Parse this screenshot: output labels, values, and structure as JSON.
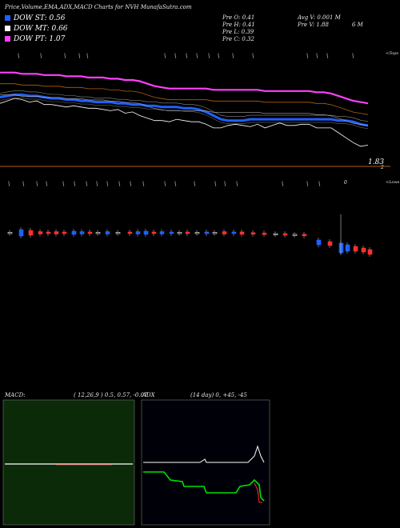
{
  "header": {
    "title": "Price,Volume,EMA,ADX,MACD Charts for NVH MunafaSutra.com"
  },
  "legend": [
    {
      "label": "DOW ST: 0.56",
      "color": "#2060ff"
    },
    {
      "label": "DOW MT: 0.66",
      "color": "#ffffff"
    },
    {
      "label": "DOW PT: 1.07",
      "color": "#ff40ff"
    }
  ],
  "stats": {
    "open": "Pre  O: 0.41",
    "high": "Pre  H: 0.41",
    "low": "Pre  L: 0.39",
    "close": "Pre  C: 0.32",
    "avgvol": "Avg V: 0.001 M",
    "vol": "Pre  V: 1.88",
    "vol_unit": "6  M"
  },
  "price_panel": {
    "tag": "<Tops",
    "last_price": "1.83",
    "corner": "2"
  },
  "volume_panel": {
    "tag": "<Lows",
    "zero": "0"
  },
  "macd": {
    "label": "MACD:",
    "params": "( 12,26,9 ) 0.5,  0.57,  -0.07",
    "bg": "#0a2a08"
  },
  "adx": {
    "label": "ADX",
    "params": "(14  day) 0,  +45,  -45",
    "bg": "#000008"
  },
  "chart_data": {
    "type": "line",
    "series": [
      {
        "values": [
          0.75,
          0.76,
          0.77,
          0.77,
          0.76,
          0.76,
          0.75,
          0.74,
          0.74,
          0.73,
          0.73,
          0.72,
          0.72,
          0.71,
          0.71,
          0.71,
          0.7,
          0.7,
          0.69,
          0.69,
          0.68,
          0.68,
          0.67,
          0.67,
          0.67,
          0.66,
          0.66,
          0.65,
          0.63,
          0.6,
          0.57,
          0.56,
          0.56,
          0.56,
          0.57,
          0.57,
          0.57,
          0.57,
          0.57,
          0.57,
          0.57,
          0.57,
          0.57,
          0.57,
          0.57,
          0.57,
          0.56,
          0.56,
          0.55,
          0.53,
          0.52
        ]
      },
      {
        "values": [
          0.7,
          0.72,
          0.74,
          0.73,
          0.71,
          0.72,
          0.69,
          0.69,
          0.68,
          0.67,
          0.68,
          0.67,
          0.66,
          0.66,
          0.65,
          0.64,
          0.65,
          0.62,
          0.63,
          0.6,
          0.58,
          0.56,
          0.56,
          0.55,
          0.57,
          0.56,
          0.55,
          0.55,
          0.53,
          0.5,
          0.5,
          0.52,
          0.53,
          0.52,
          0.51,
          0.53,
          0.5,
          0.52,
          0.54,
          0.52,
          0.52,
          0.53,
          0.53,
          0.5,
          0.5,
          0.5,
          0.46,
          0.42,
          0.38,
          0.35,
          0.36
        ]
      },
      {
        "values": [
          0.95,
          0.95,
          0.95,
          0.94,
          0.94,
          0.94,
          0.93,
          0.93,
          0.93,
          0.92,
          0.92,
          0.92,
          0.91,
          0.91,
          0.91,
          0.9,
          0.9,
          0.89,
          0.89,
          0.88,
          0.86,
          0.84,
          0.83,
          0.82,
          0.82,
          0.82,
          0.82,
          0.82,
          0.82,
          0.81,
          0.81,
          0.81,
          0.81,
          0.81,
          0.81,
          0.81,
          0.8,
          0.8,
          0.8,
          0.8,
          0.8,
          0.8,
          0.8,
          0.79,
          0.79,
          0.78,
          0.76,
          0.74,
          0.72,
          0.71,
          0.7
        ]
      }
    ]
  }
}
